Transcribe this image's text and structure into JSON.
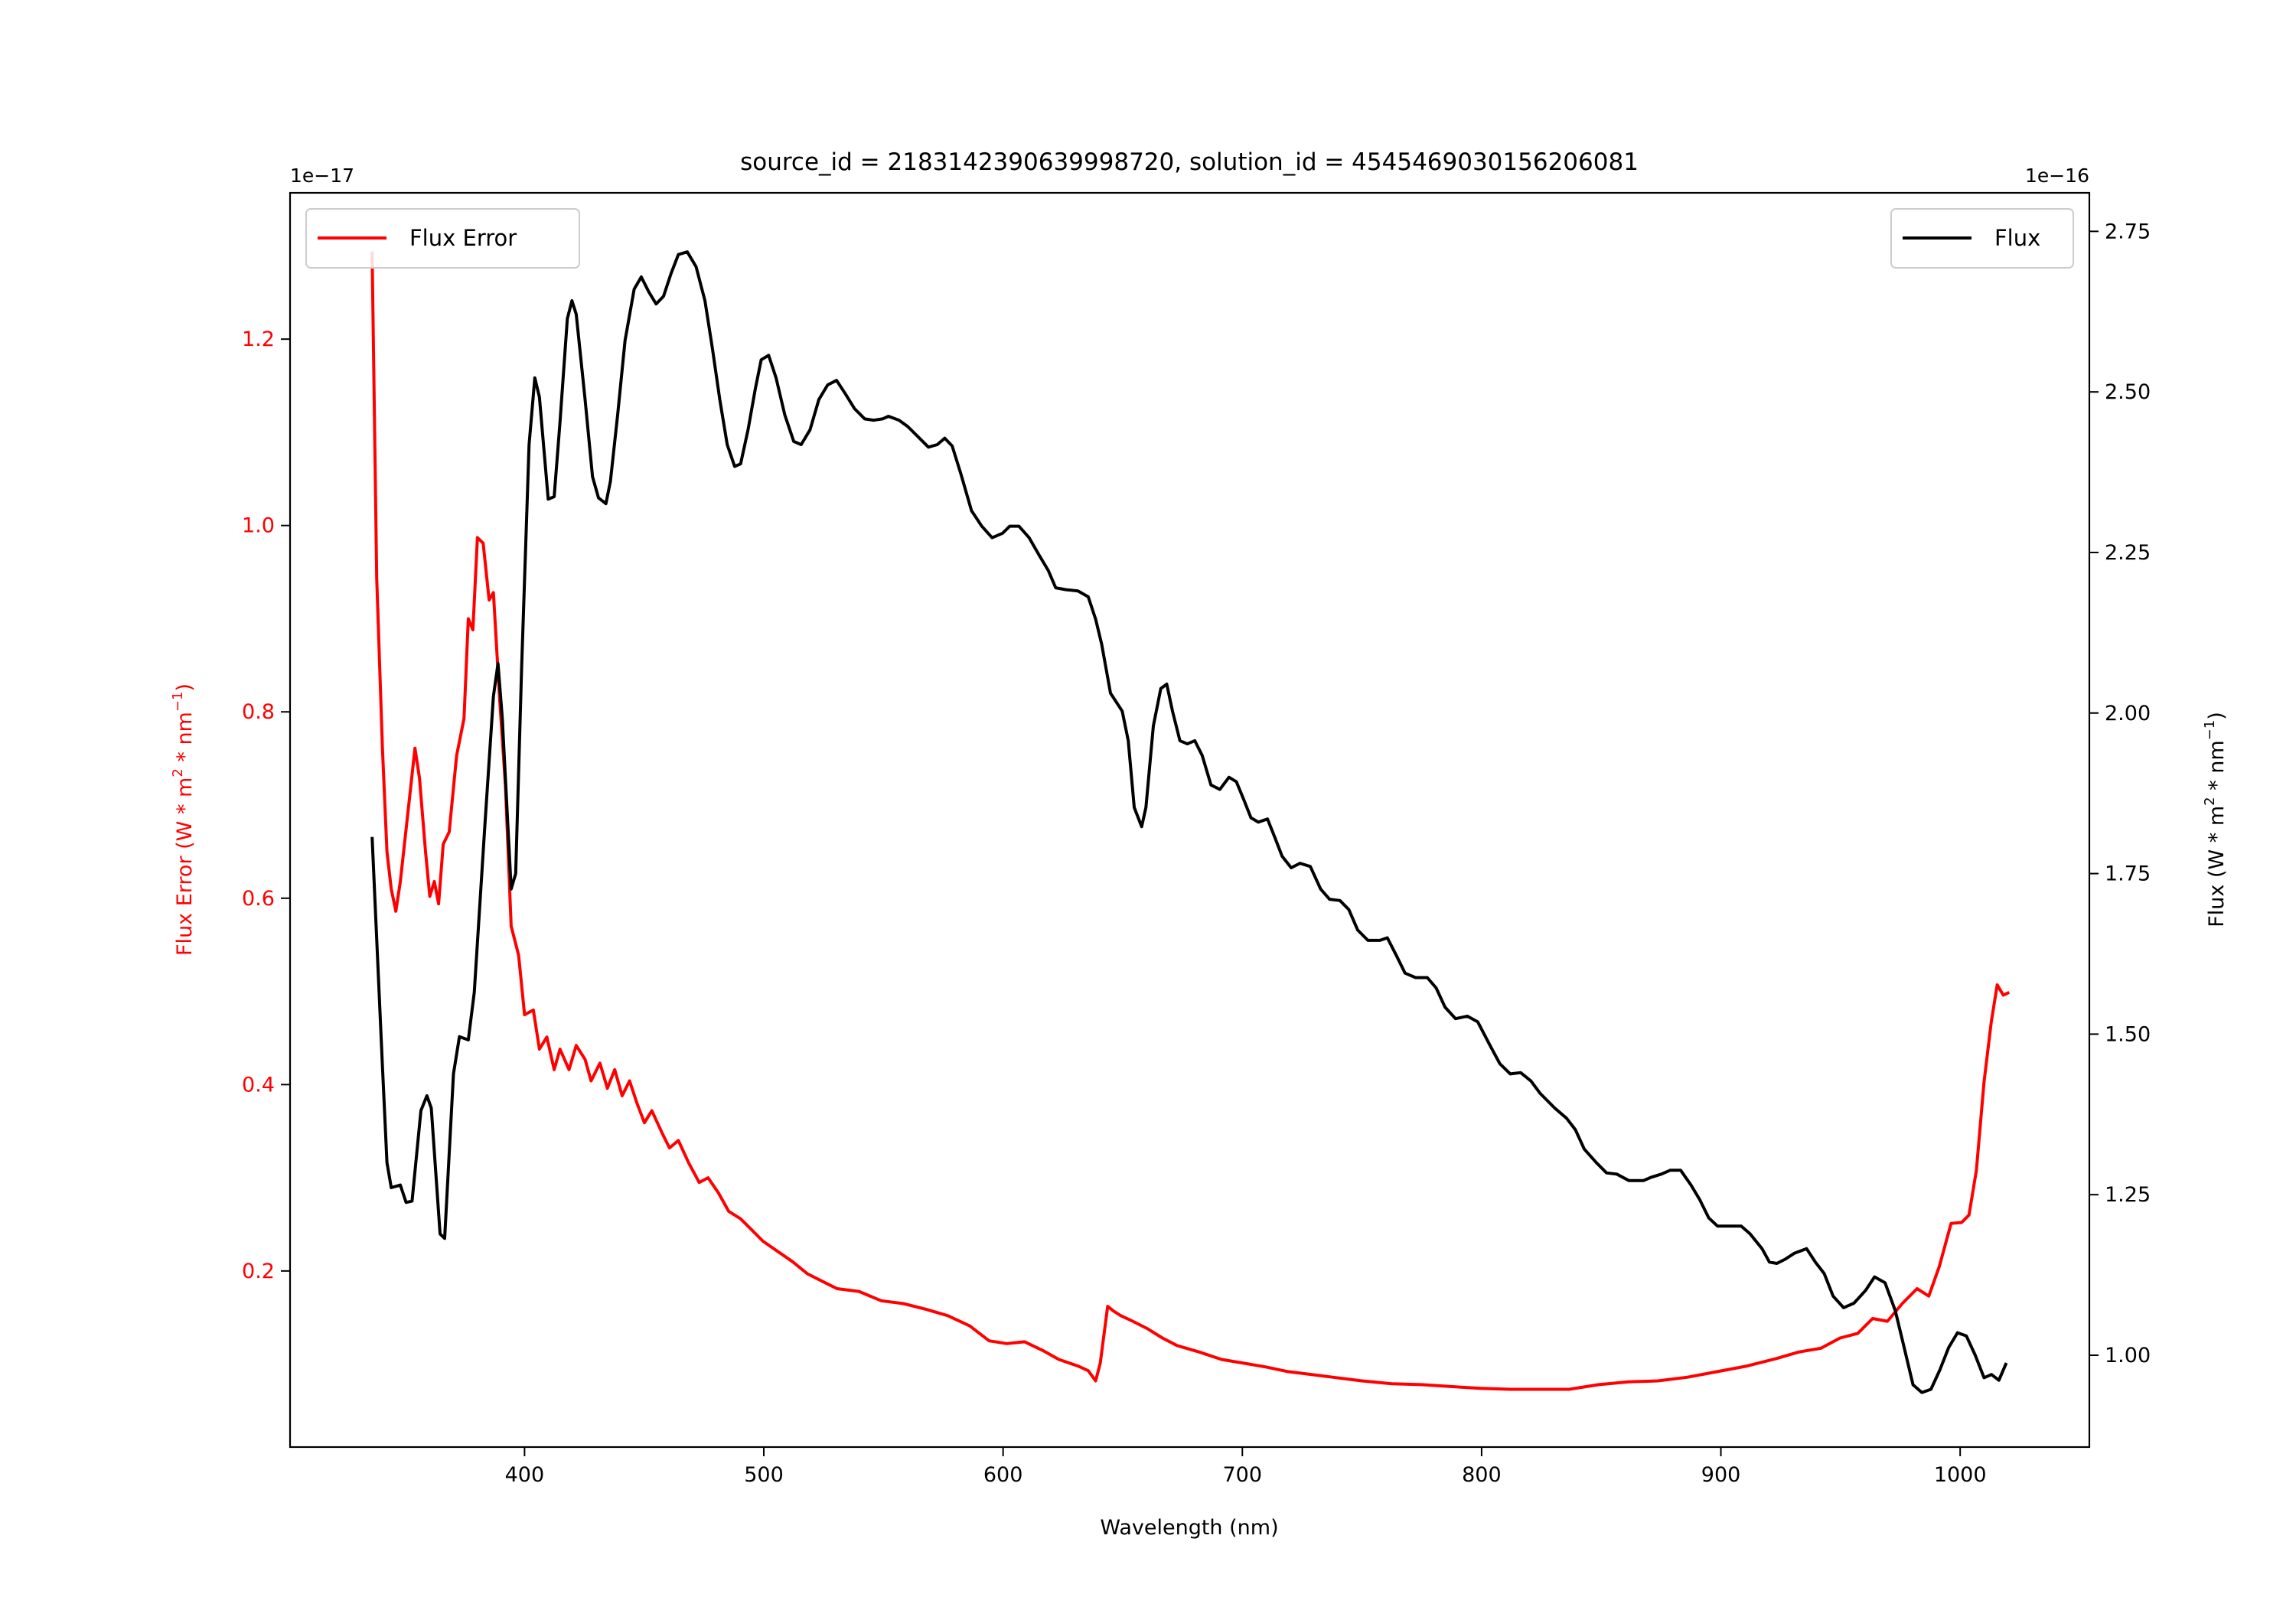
{
  "chart_data": {
    "type": "line",
    "title": "source_id = 2183142390639998720, solution_id = 4545469030156206081",
    "xlabel": "Wavelength (nm)",
    "ylabel_left": "Flux Error (W * m$^2$ * nm$^{-1}$)",
    "ylabel_left_parts": [
      "Flux Error (W * m",
      "2",
      " * nm",
      "−1",
      ")"
    ],
    "ylabel_right_parts": [
      "Flux (W * m",
      "2",
      " * nm",
      "−1",
      ")"
    ],
    "offset_left": "1e−17",
    "offset_right": "1e−16",
    "xlim": [
      302,
      1054
    ],
    "ylim_left": [
      0.011,
      1.357
    ],
    "ylim_right": [
      0.857,
      2.81
    ],
    "xticks": [
      400,
      500,
      600,
      700,
      800,
      900,
      1000
    ],
    "xtick_labels": [
      "400",
      "500",
      "600",
      "700",
      "800",
      "900",
      "1000"
    ],
    "yticks_left": [
      0.2,
      0.4,
      0.6,
      0.8,
      1.0,
      1.2
    ],
    "ytick_labels_left": [
      "0.2",
      "0.4",
      "0.6",
      "0.8",
      "1.0",
      "1.2"
    ],
    "yticks_right": [
      1.0,
      1.25,
      1.5,
      1.75,
      2.0,
      2.25,
      2.5,
      2.75
    ],
    "ytick_labels_right": [
      "1.00",
      "1.25",
      "1.50",
      "1.75",
      "2.00",
      "2.25",
      "2.50",
      "2.75"
    ],
    "legend_left": {
      "label": "Flux Error",
      "position": "upper-left"
    },
    "legend_right": {
      "label": "Flux",
      "position": "upper-right"
    },
    "colors": {
      "flux_error": "#ff0000",
      "flux": "#000000",
      "axis": "#000000",
      "left_axis_text": "#ff0000"
    },
    "series": [
      {
        "name": "Flux Error",
        "axis": "left",
        "color": "#ff0000",
        "x": [
          336.3,
          338.2,
          340.6,
          342.5,
          344.3,
          346.2,
          348.1,
          350.5,
          354.2,
          356.1,
          358.6,
          360.4,
          362.3,
          364.1,
          366,
          368.5,
          371.6,
          374.7,
          376.5,
          378.4,
          380.3,
          382.7,
          385.2,
          387,
          389.5,
          392,
          394.4,
          397.5,
          400,
          403.7,
          406.2,
          409.3,
          412.4,
          414.8,
          418.6,
          421.6,
          425.3,
          427.8,
          431.5,
          434.6,
          437.7,
          440.8,
          443.9,
          447,
          450.1,
          453.2,
          457.5,
          460.6,
          464.3,
          468.6,
          473,
          476.7,
          481,
          485.3,
          490.3,
          494.6,
          499.6,
          505.8,
          512,
          518.2,
          524.4,
          530.6,
          539.8,
          549.1,
          558.3,
          567.6,
          576.9,
          586.1,
          594.2,
          601.6,
          609,
          617.1,
          623.3,
          631.3,
          635.6,
          638.7,
          640.6,
          643.7,
          646.1,
          649.2,
          654.2,
          660.4,
          666.6,
          672.7,
          682,
          691.3,
          700.6,
          709.8,
          719.1,
          728.4,
          737.7,
          750,
          762.4,
          774.8,
          787.1,
          799.5,
          811.9,
          824.2,
          836.6,
          849,
          861.4,
          873.7,
          886.1,
          898.5,
          910.9,
          923.2,
          932.5,
          941.8,
          949.8,
          957.2,
          963.4,
          969.6,
          975.8,
          982,
          986.9,
          991.3,
          996.2,
          1000.6,
          1003.7,
          1006.8,
          1010,
          1013,
          1015.5,
          1018,
          1020.5
        ],
        "y": [
          1.294,
          0.944,
          0.761,
          0.65,
          0.61,
          0.586,
          0.618,
          0.674,
          0.761,
          0.729,
          0.65,
          0.602,
          0.618,
          0.594,
          0.658,
          0.671,
          0.753,
          0.793,
          0.9,
          0.888,
          0.987,
          0.981,
          0.92,
          0.928,
          0.817,
          0.721,
          0.57,
          0.539,
          0.475,
          0.48,
          0.438,
          0.451,
          0.416,
          0.438,
          0.416,
          0.442,
          0.427,
          0.404,
          0.423,
          0.396,
          0.416,
          0.388,
          0.404,
          0.38,
          0.359,
          0.372,
          0.348,
          0.332,
          0.34,
          0.316,
          0.295,
          0.3,
          0.284,
          0.264,
          0.256,
          0.245,
          0.232,
          0.221,
          0.21,
          0.197,
          0.189,
          0.181,
          0.178,
          0.168,
          0.165,
          0.159,
          0.152,
          0.141,
          0.125,
          0.122,
          0.124,
          0.114,
          0.105,
          0.098,
          0.093,
          0.082,
          0.101,
          0.162,
          0.157,
          0.152,
          0.146,
          0.138,
          0.128,
          0.12,
          0.113,
          0.105,
          0.101,
          0.097,
          0.092,
          0.089,
          0.086,
          0.082,
          0.079,
          0.078,
          0.076,
          0.074,
          0.073,
          0.073,
          0.073,
          0.078,
          0.081,
          0.082,
          0.086,
          0.092,
          0.098,
          0.106,
          0.113,
          0.117,
          0.128,
          0.133,
          0.149,
          0.146,
          0.165,
          0.181,
          0.173,
          0.205,
          0.251,
          0.252,
          0.26,
          0.308,
          0.403,
          0.467,
          0.507,
          0.496,
          0.499
        ]
      },
      {
        "name": "Flux",
        "axis": "right",
        "color": "#000000",
        "x": [
          336.3,
          340.6,
          342.5,
          344.3,
          348.1,
          350.5,
          353,
          356.7,
          359.2,
          361,
          364.7,
          366.6,
          370.3,
          372.8,
          376.5,
          379,
          383.3,
          387,
          388.9,
          390.7,
          394.4,
          396.3,
          398.8,
          401.9,
          404.3,
          406.2,
          409.9,
          412.4,
          414.8,
          417.9,
          419.8,
          421.6,
          425.3,
          428.4,
          430.9,
          434,
          435.9,
          438.9,
          442,
          445.8,
          448.8,
          451.9,
          455,
          458.1,
          461.2,
          464.3,
          468,
          471.7,
          475.4,
          478.5,
          481.6,
          484.7,
          487.8,
          490.3,
          493.4,
          496.5,
          498.9,
          502,
          505.1,
          508.8,
          512.5,
          515.6,
          519.3,
          523,
          526.7,
          530.4,
          534.1,
          537.9,
          542.2,
          545.9,
          549.6,
          552.1,
          556.5,
          560.2,
          564.5,
          568.8,
          572.5,
          575.6,
          578.7,
          582.4,
          586.8,
          591.1,
          595.4,
          599.8,
          602.8,
          606.6,
          610.9,
          615.2,
          618.9,
          622,
          626.3,
          631.3,
          635.6,
          638.7,
          641.2,
          644.9,
          649.8,
          652.3,
          654.8,
          657.9,
          659.7,
          662.8,
          665.9,
          668.4,
          670.8,
          673.9,
          677,
          680.1,
          683.2,
          686.9,
          690.6,
          694.4,
          697.5,
          700.6,
          703.6,
          706.7,
          710.5,
          713.5,
          716.6,
          720.4,
          724.1,
          728.4,
          732.7,
          736.4,
          740.8,
          744.5,
          748.2,
          752.5,
          757.5,
          760.6,
          764.3,
          768,
          772.4,
          777.3,
          781,
          784.7,
          789.1,
          794,
          798.4,
          803.3,
          807.6,
          812,
          816.3,
          820.6,
          824.4,
          830.5,
          835.5,
          839.2,
          842.9,
          847.9,
          852.2,
          856.5,
          861.5,
          867.7,
          870.8,
          875.1,
          878.8,
          883.2,
          887.5,
          891.2,
          894.9,
          898.6,
          903.6,
          908.5,
          912.2,
          917.2,
          920.3,
          923.4,
          927.1,
          930.8,
          935.8,
          939.5,
          943.2,
          946.9,
          951.3,
          955.6,
          960.5,
          964.2,
          968.6,
          972.9,
          976.6,
          980.3,
          984,
          987.8,
          991.5,
          995.2,
          998.9,
          1002.6,
          1006.3,
          1010,
          1013.1,
          1016.2,
          1019.3
        ],
        "y": [
          1.807,
          1.45,
          1.3,
          1.261,
          1.265,
          1.238,
          1.24,
          1.381,
          1.404,
          1.385,
          1.189,
          1.182,
          1.438,
          1.496,
          1.491,
          1.565,
          1.819,
          2.026,
          2.077,
          1.992,
          1.726,
          1.75,
          2.072,
          2.418,
          2.522,
          2.492,
          2.333,
          2.337,
          2.453,
          2.614,
          2.642,
          2.621,
          2.488,
          2.368,
          2.335,
          2.326,
          2.361,
          2.464,
          2.58,
          2.66,
          2.679,
          2.656,
          2.637,
          2.649,
          2.684,
          2.714,
          2.718,
          2.695,
          2.642,
          2.568,
          2.488,
          2.418,
          2.384,
          2.388,
          2.441,
          2.506,
          2.55,
          2.557,
          2.522,
          2.464,
          2.423,
          2.418,
          2.441,
          2.488,
          2.511,
          2.518,
          2.497,
          2.474,
          2.458,
          2.456,
          2.458,
          2.462,
          2.456,
          2.446,
          2.43,
          2.414,
          2.418,
          2.428,
          2.416,
          2.372,
          2.315,
          2.291,
          2.273,
          2.28,
          2.291,
          2.291,
          2.273,
          2.245,
          2.222,
          2.195,
          2.192,
          2.19,
          2.181,
          2.146,
          2.107,
          2.031,
          2.003,
          1.957,
          1.853,
          1.823,
          1.853,
          1.98,
          2.038,
          2.045,
          2.003,
          1.957,
          1.952,
          1.957,
          1.934,
          1.888,
          1.881,
          1.9,
          1.893,
          1.865,
          1.837,
          1.83,
          1.835,
          1.807,
          1.777,
          1.759,
          1.766,
          1.761,
          1.726,
          1.71,
          1.708,
          1.694,
          1.662,
          1.646,
          1.646,
          1.65,
          1.623,
          1.595,
          1.588,
          1.588,
          1.572,
          1.542,
          1.524,
          1.528,
          1.519,
          1.484,
          1.454,
          1.438,
          1.44,
          1.427,
          1.408,
          1.385,
          1.369,
          1.351,
          1.321,
          1.3,
          1.284,
          1.282,
          1.272,
          1.272,
          1.277,
          1.282,
          1.288,
          1.288,
          1.265,
          1.242,
          1.214,
          1.201,
          1.201,
          1.201,
          1.189,
          1.166,
          1.145,
          1.143,
          1.15,
          1.159,
          1.166,
          1.145,
          1.127,
          1.092,
          1.074,
          1.081,
          1.101,
          1.122,
          1.113,
          1.069,
          1.012,
          0.954,
          0.942,
          0.947,
          0.977,
          1.012,
          1.035,
          1.03,
          1.0,
          0.965,
          0.97,
          0.961,
          0.988
        ]
      }
    ]
  }
}
